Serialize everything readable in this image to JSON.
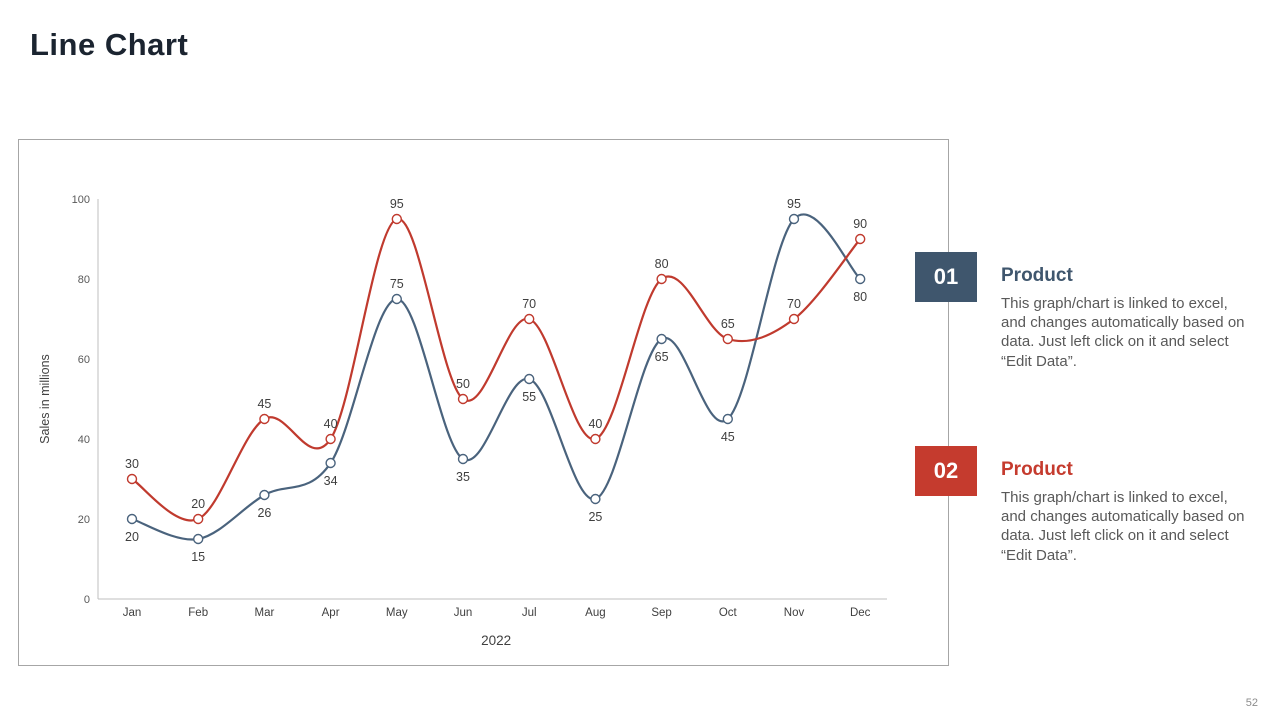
{
  "slide": {
    "title": "Line Chart",
    "page_number": "52"
  },
  "chart_data": {
    "type": "line",
    "title": "",
    "xlabel": "2022",
    "ylabel": "Sales in millions",
    "categories": [
      "Jan",
      "Feb",
      "Mar",
      "Apr",
      "May",
      "Jun",
      "Jul",
      "Aug",
      "Sep",
      "Oct",
      "Nov",
      "Dec"
    ],
    "series": [
      {
        "name": "Product 01",
        "color": "#4a637d",
        "values": [
          20,
          15,
          26,
          34,
          75,
          35,
          55,
          25,
          65,
          45,
          95,
          80
        ],
        "label_position": "below",
        "label_overrides": {
          "4": "above",
          "10": "above"
        }
      },
      {
        "name": "Product 02",
        "color": "#c03a2e",
        "values": [
          30,
          20,
          45,
          40,
          95,
          50,
          70,
          40,
          80,
          65,
          70,
          90
        ],
        "label_position": "above"
      }
    ],
    "ylim": [
      0,
      100
    ],
    "yticks": [
      0,
      20,
      40,
      60,
      80,
      100
    ],
    "grid": false,
    "legend": "none",
    "data_labels": true,
    "marker": "open-circle"
  },
  "callouts": [
    {
      "number": "01",
      "accent": "#3f566d",
      "title": "Product",
      "description": "This graph/chart is linked to excel, and changes automatically based on data. Just left click on it and select “Edit Data”."
    },
    {
      "number": "02",
      "accent": "#c53b2e",
      "title": "Product",
      "description": "This graph/chart is linked to excel, and changes automatically based on data. Just left click on it and select “Edit Data”."
    }
  ]
}
